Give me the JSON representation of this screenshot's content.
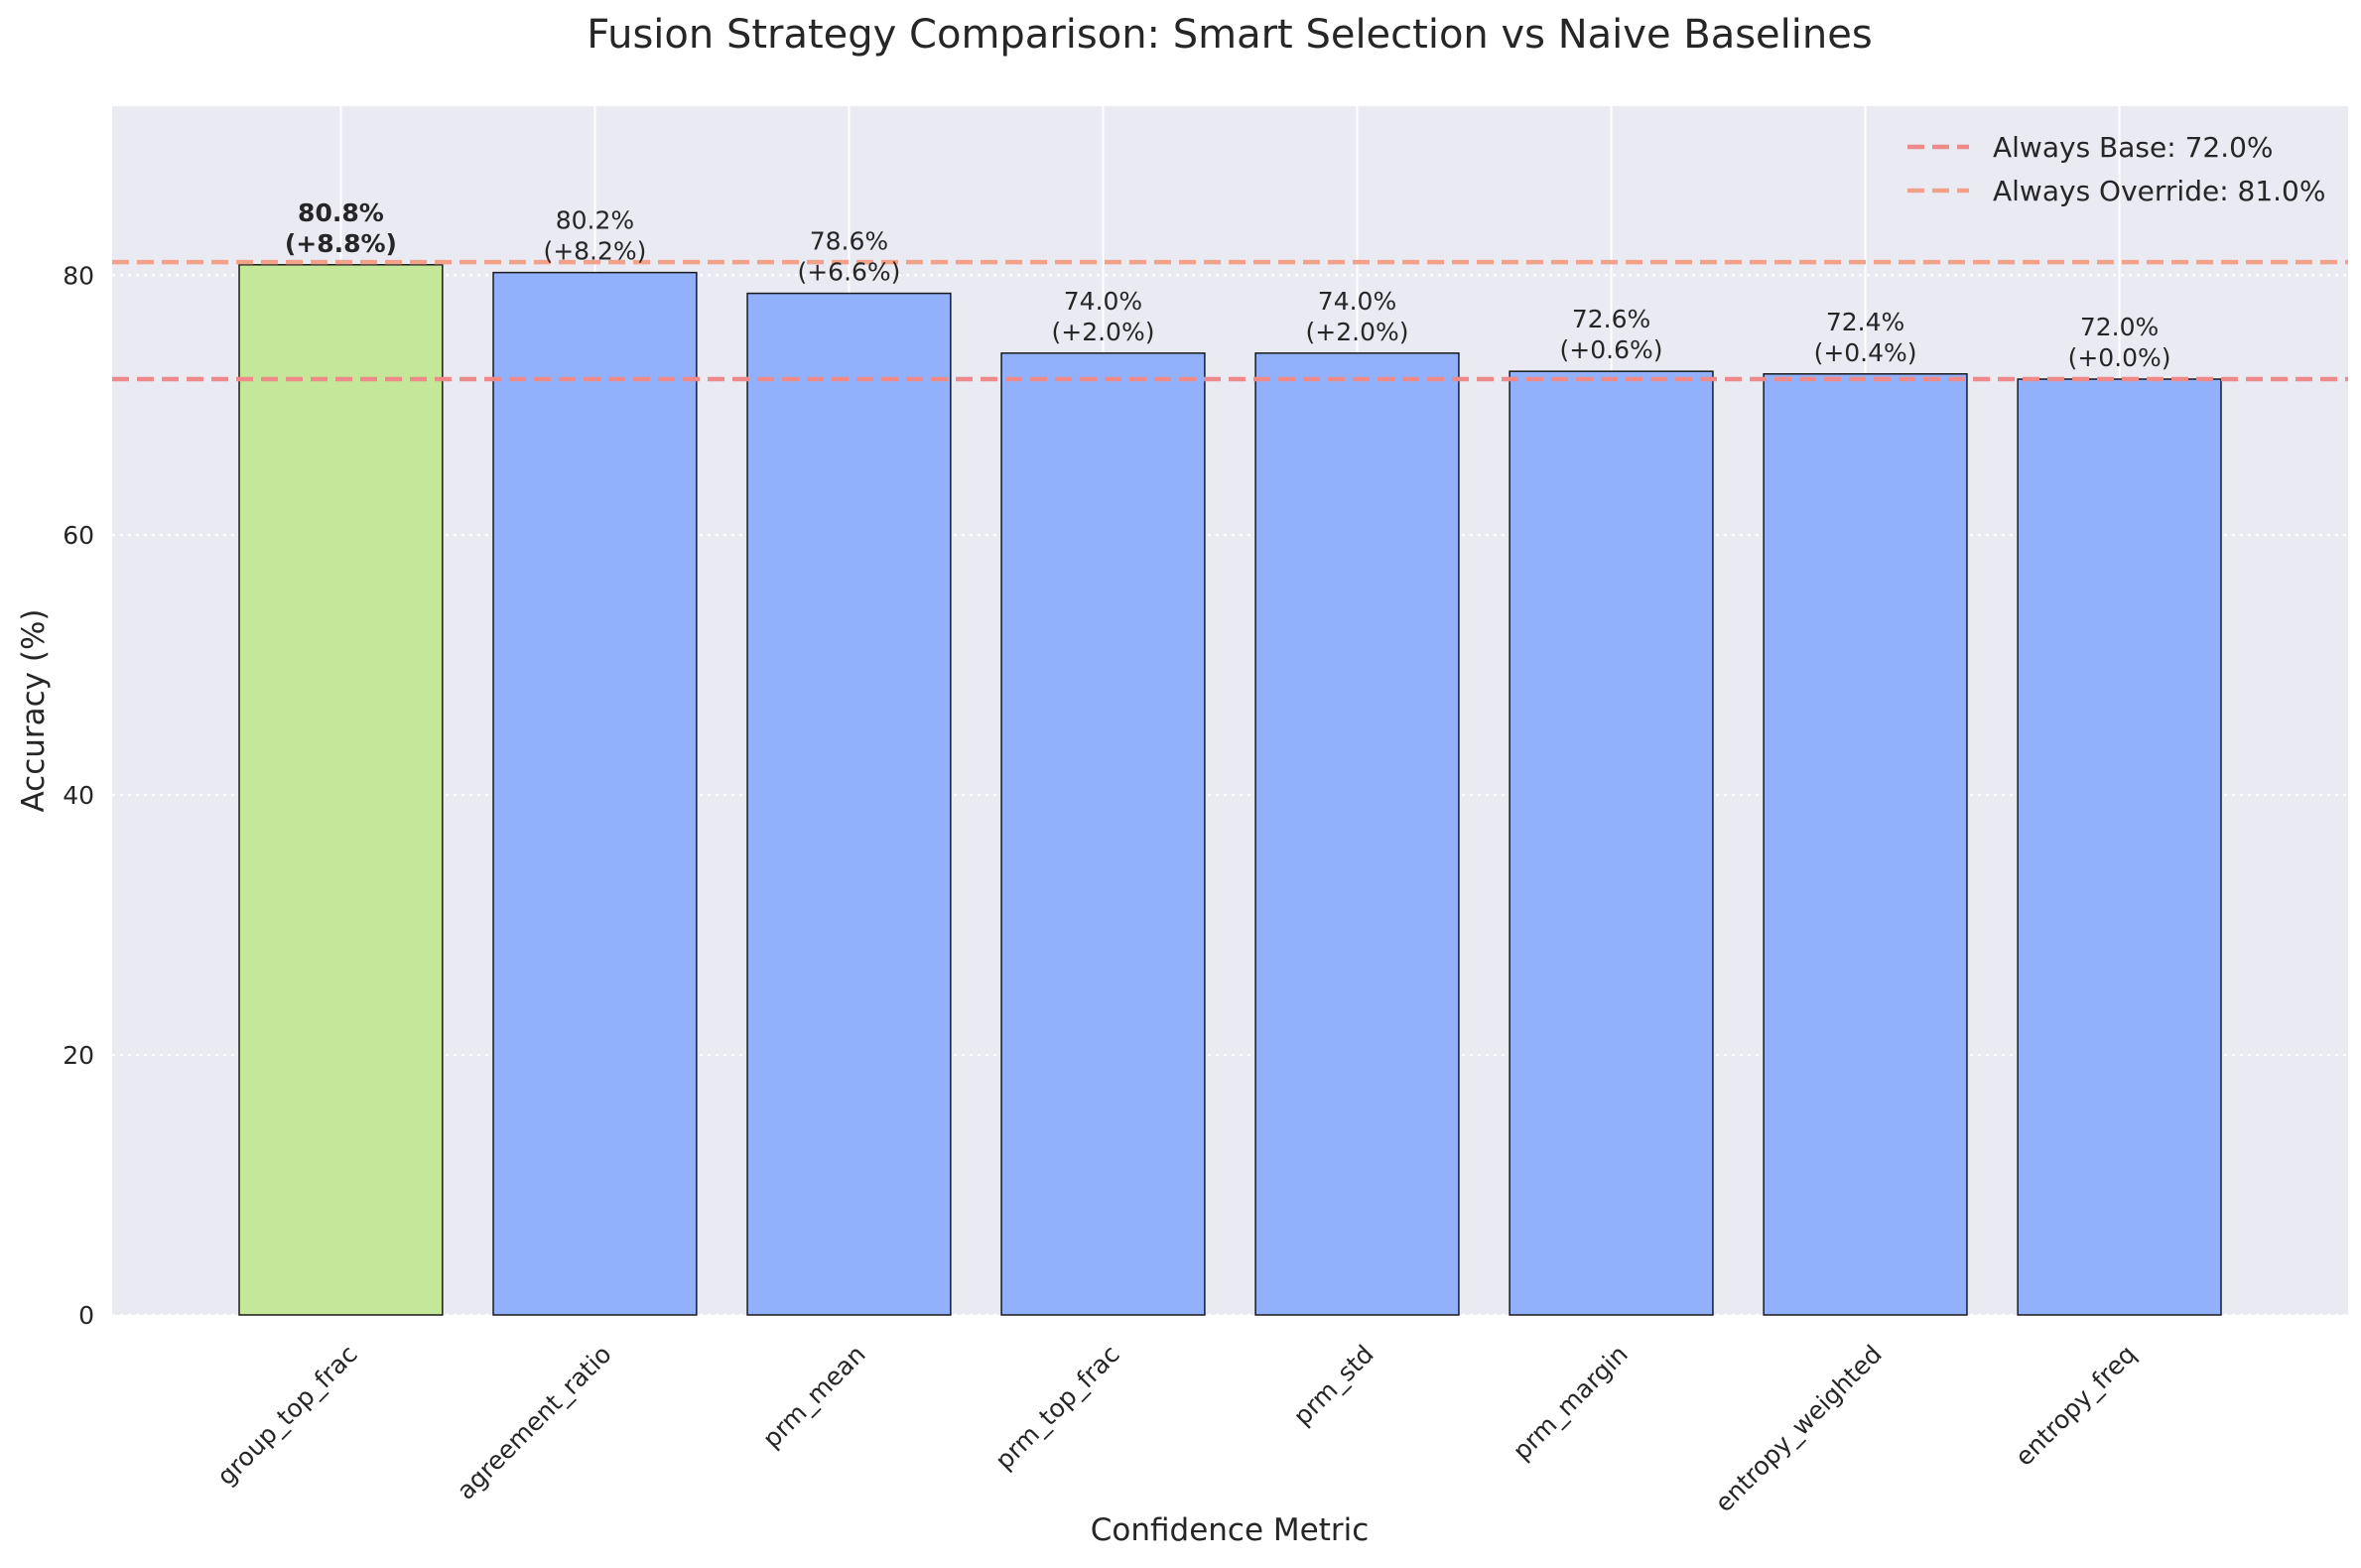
{
  "chart_data": {
    "type": "bar",
    "title": "Fusion Strategy Comparison: Smart Selection vs Naive Baselines",
    "xlabel": "Confidence Metric",
    "ylabel": "Accuracy (%)",
    "ylim": [
      0,
      93
    ],
    "yticks": [
      0,
      20,
      40,
      60,
      80
    ],
    "grid": true,
    "legend_position": "top-right",
    "categories": [
      "group_top_frac",
      "agreement_ratio",
      "prm_mean",
      "prm_top_frac",
      "prm_std",
      "prm_margin",
      "entropy_weighted",
      "entropy_freq"
    ],
    "values": [
      80.8,
      80.2,
      78.6,
      74.0,
      74.0,
      72.6,
      72.4,
      72.0
    ],
    "value_labels": [
      "80.8%",
      "80.2%",
      "78.6%",
      "74.0%",
      "74.0%",
      "72.6%",
      "72.4%",
      "72.0%"
    ],
    "delta_labels": [
      "(+8.8%)",
      "(+8.2%)",
      "(+6.6%)",
      "(+2.0%)",
      "(+2.0%)",
      "(+0.6%)",
      "(+0.4%)",
      "(+0.0%)"
    ],
    "highlight_index": 0,
    "colors": {
      "highlight": "#c5e79a",
      "bar": "#91b1fc",
      "base_line": "#ee8a8a",
      "override_line": "#f4a18a",
      "plot_bg": "#eaeaf2",
      "bar_edge": "#1a1a1a"
    },
    "reference_lines": [
      {
        "name": "Always Base: 72.0%",
        "value": 72.0
      },
      {
        "name": "Always Override: 81.0%",
        "value": 81.0
      }
    ]
  }
}
